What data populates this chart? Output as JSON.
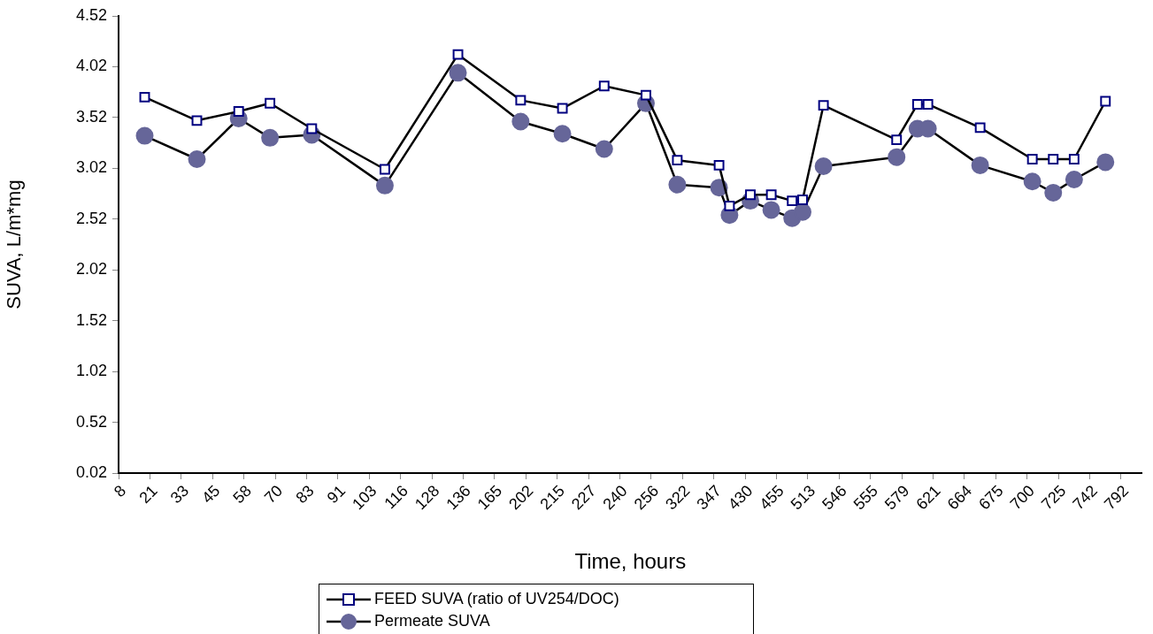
{
  "chart_data": {
    "type": "line",
    "xlabel": "Time, hours",
    "ylabel": "SUVA, L/m*mg",
    "categories": [
      "8",
      null,
      null,
      "21",
      null,
      null,
      "33",
      null,
      null,
      "45",
      null,
      null,
      "58",
      null,
      null,
      "70",
      null,
      null,
      "83",
      null,
      null,
      "91",
      null,
      null,
      "103",
      null,
      null,
      "116",
      null,
      null,
      "128",
      null,
      null,
      "136",
      null,
      null,
      "165",
      null,
      null,
      "202",
      null,
      null,
      "215",
      null,
      null,
      "227",
      null,
      null,
      "240",
      null,
      null,
      "256",
      null,
      null,
      "322",
      null,
      null,
      "347",
      null,
      null,
      "430",
      null,
      null,
      "455",
      null,
      null,
      "513",
      null,
      null,
      "546",
      null,
      null,
      "555",
      null,
      null,
      "579",
      null,
      null,
      "621",
      null,
      null,
      "664",
      null,
      null,
      "675",
      null,
      null,
      "700",
      null,
      null,
      "725",
      null,
      null,
      "742",
      null,
      null,
      "792",
      null
    ],
    "ylim": [
      0.02,
      4.52
    ],
    "yticks": [
      0.02,
      0.52,
      1.02,
      1.52,
      2.02,
      2.52,
      3.02,
      3.52,
      4.02,
      4.52
    ],
    "legend": "bottom",
    "line_style": "solid",
    "series": [
      {
        "name": "FEED SUVA (ratio of UV254/DOC)",
        "color": "#000080",
        "marker": "square",
        "values": [
          null,
          null,
          3.72,
          null,
          null,
          null,
          null,
          3.49,
          null,
          null,
          null,
          3.58,
          null,
          null,
          3.66,
          null,
          null,
          null,
          3.41,
          null,
          null,
          null,
          null,
          null,
          null,
          3.01,
          null,
          null,
          null,
          null,
          null,
          null,
          4.14,
          null,
          null,
          null,
          null,
          null,
          3.69,
          null,
          null,
          null,
          3.61,
          null,
          null,
          null,
          3.83,
          null,
          null,
          null,
          3.74,
          null,
          null,
          3.1,
          null,
          null,
          null,
          3.05,
          2.65,
          null,
          2.76,
          null,
          2.76,
          null,
          2.7,
          2.71,
          null,
          3.64,
          null,
          null,
          null,
          null,
          null,
          null,
          3.3,
          null,
          3.65,
          3.65,
          null,
          null,
          null,
          null,
          3.42,
          null,
          null,
          null,
          null,
          3.11,
          null,
          3.11,
          null,
          3.11,
          null,
          null,
          3.68,
          null,
          null,
          null
        ]
      },
      {
        "name": "Permeate SUVA",
        "color": "#666699",
        "marker": "circle",
        "values": [
          null,
          null,
          3.34,
          null,
          null,
          null,
          null,
          3.11,
          null,
          null,
          null,
          3.51,
          null,
          null,
          3.32,
          null,
          null,
          null,
          3.35,
          null,
          null,
          null,
          null,
          null,
          null,
          2.85,
          null,
          null,
          null,
          null,
          null,
          null,
          3.96,
          null,
          null,
          null,
          null,
          null,
          3.48,
          null,
          null,
          null,
          3.36,
          null,
          null,
          null,
          3.21,
          null,
          null,
          null,
          3.66,
          null,
          null,
          2.86,
          null,
          null,
          null,
          2.83,
          2.56,
          null,
          2.7,
          null,
          2.61,
          null,
          2.53,
          2.59,
          null,
          3.04,
          null,
          null,
          null,
          null,
          null,
          null,
          3.13,
          null,
          3.41,
          3.41,
          null,
          null,
          null,
          null,
          3.05,
          null,
          null,
          null,
          null,
          2.89,
          null,
          2.78,
          null,
          2.91,
          null,
          null,
          3.08,
          null,
          null,
          null
        ]
      }
    ]
  }
}
